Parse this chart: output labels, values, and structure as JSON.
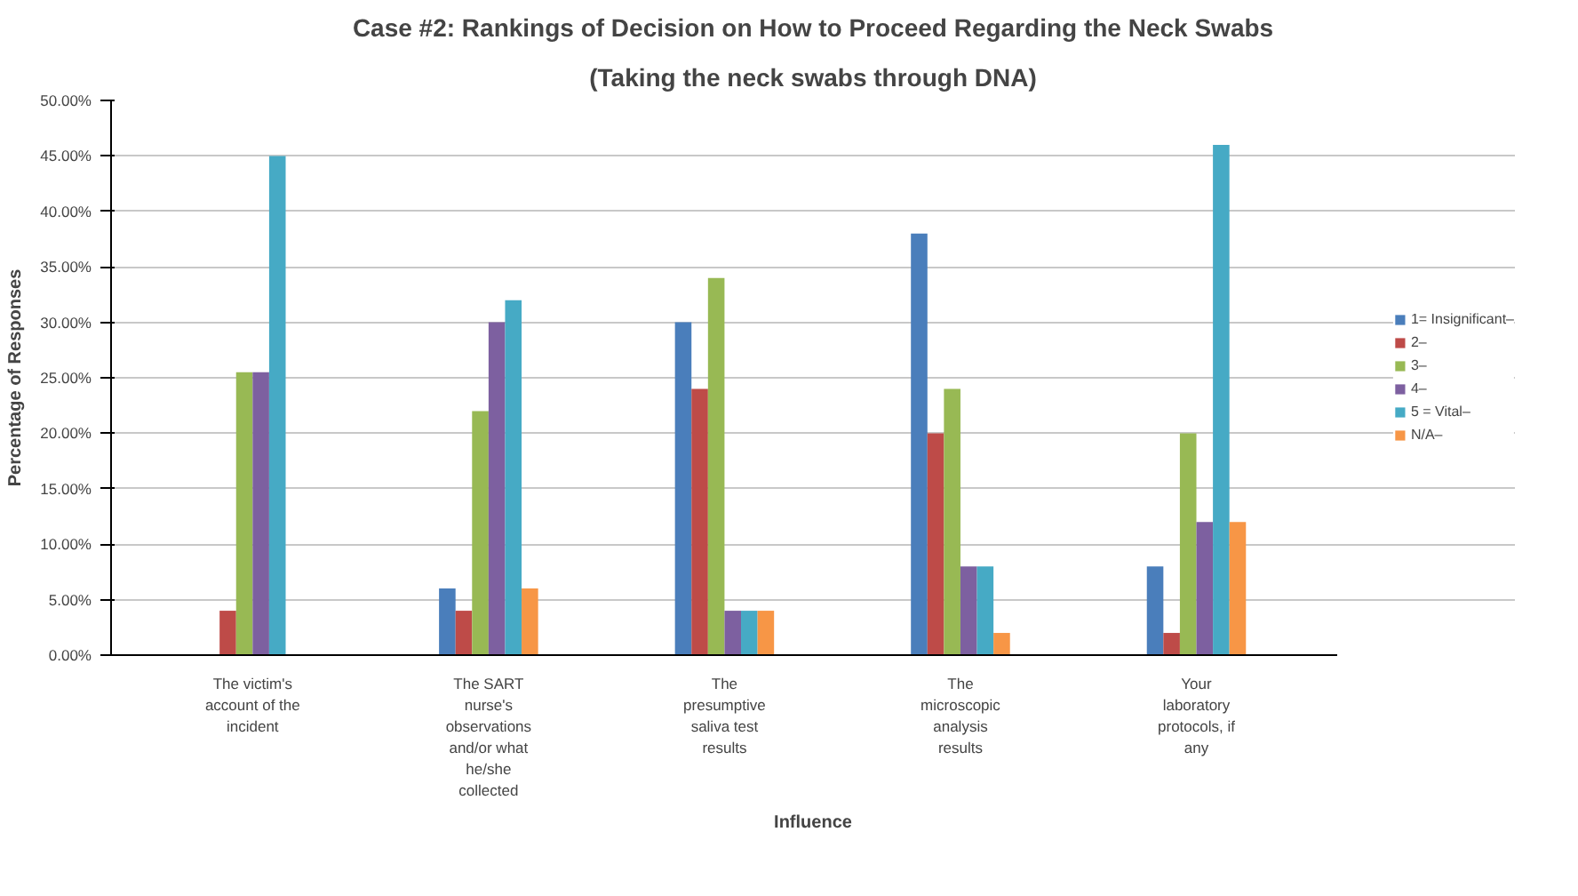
{
  "chart_data": {
    "type": "bar",
    "title": "Case #2: Rankings of Decision on How to Proceed Regarding the Neck Swabs",
    "subtitle": "(Taking the neck swabs through DNA)",
    "xlabel": "Influence",
    "ylabel": "Percentage of Responses",
    "categories": [
      "The victim's account of the incident",
      "The SART nurse's observations and/or what he/she collected",
      "The presumptive saliva test results",
      "The microscopic analysis results",
      "Your laboratory protocols, if any"
    ],
    "series": [
      {
        "name": "1= Insignificant–",
        "color": "#4a7ebb",
        "values": [
          0,
          6,
          30,
          38,
          8
        ]
      },
      {
        "name": "2–",
        "color": "#be4b48",
        "values": [
          4,
          4,
          24,
          20,
          2
        ]
      },
      {
        "name": "3–",
        "color": "#98b954",
        "values": [
          25.5,
          22,
          34,
          24,
          20
        ]
      },
      {
        "name": "4–",
        "color": "#7d60a0",
        "values": [
          25.5,
          30,
          4,
          8,
          12
        ]
      },
      {
        "name": "5 = Vital–",
        "color": "#46aac5",
        "values": [
          45,
          32,
          4,
          8,
          46
        ]
      },
      {
        "name": "N/A–",
        "color": "#f79646",
        "values": [
          0,
          6,
          4,
          2,
          12
        ]
      }
    ],
    "ylim": [
      0,
      50
    ],
    "yticks": [
      {
        "value": 0,
        "label": "0.00%"
      },
      {
        "value": 5,
        "label": "5.00%"
      },
      {
        "value": 10,
        "label": "10.00%"
      },
      {
        "value": 15,
        "label": "15.00%"
      },
      {
        "value": 20,
        "label": "20.00%"
      },
      {
        "value": 25,
        "label": "25.00%"
      },
      {
        "value": 30,
        "label": "30.00%"
      },
      {
        "value": 35,
        "label": "35.00%"
      },
      {
        "value": 40,
        "label": "40.00%"
      },
      {
        "value": 45,
        "label": "45.00%"
      },
      {
        "value": 50,
        "label": "50.00%"
      }
    ],
    "grid": "y",
    "legend": "right"
  }
}
